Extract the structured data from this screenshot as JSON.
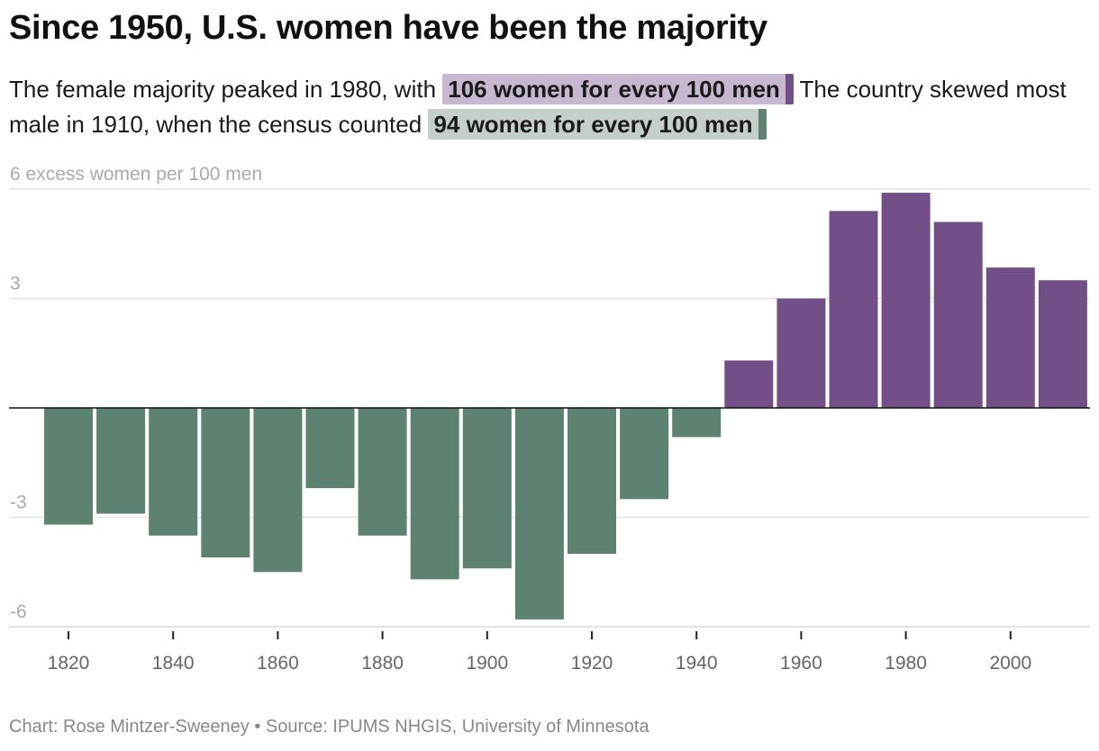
{
  "title": "Since 1950, U.S. women have been the majority",
  "subtitle": {
    "part1": "The female majority peaked in 1980, with ",
    "highlight1": "106 women for every 100 men",
    "part2": " The country skewed most male in 1910, when the census counted ",
    "highlight2": "94 women for every 100 men"
  },
  "footer": "Chart: Rose Mintzer-Sweeney • Source: IPUMS NHGIS, University of Minnesota",
  "colors": {
    "positive": "#734f87",
    "negative": "#5e8270",
    "highlight_positive_bg": "#c7b8cf",
    "highlight_negative_bg": "#c3cfc8"
  },
  "chart_data": {
    "type": "bar",
    "title": "Since 1950, U.S. women have been the majority",
    "ylabel": "excess women per 100 men",
    "ylim": [
      -6,
      6
    ],
    "yticks": [
      {
        "value": 6,
        "label": "6 excess women per 100 men"
      },
      {
        "value": 3,
        "label": "3"
      },
      {
        "value": 0,
        "label": ""
      },
      {
        "value": -3,
        "label": "-3"
      },
      {
        "value": -6,
        "label": "-6"
      }
    ],
    "xticks": [
      "1820",
      "1840",
      "1860",
      "1880",
      "1900",
      "1920",
      "1940",
      "1960",
      "1980",
      "2000"
    ],
    "grid": true,
    "categories": [
      1820,
      1830,
      1840,
      1850,
      1860,
      1870,
      1880,
      1890,
      1900,
      1910,
      1920,
      1930,
      1940,
      1950,
      1960,
      1970,
      1980,
      1990,
      2000,
      2010
    ],
    "values": [
      -3.2,
      -2.9,
      -3.5,
      -4.1,
      -4.5,
      -2.2,
      -3.5,
      -4.7,
      -4.4,
      -5.8,
      -4.0,
      -2.5,
      -0.8,
      1.3,
      3.0,
      5.4,
      5.9,
      5.1,
      3.85,
      3.5
    ]
  }
}
